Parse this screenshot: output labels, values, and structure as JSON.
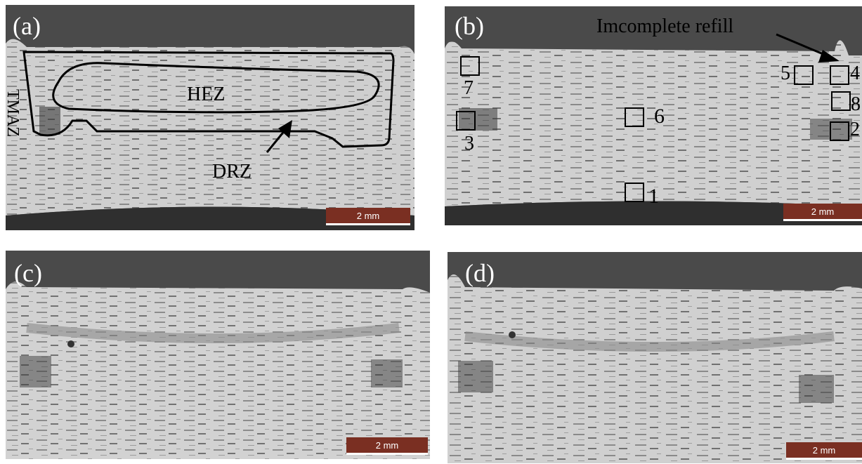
{
  "panels": {
    "a": {
      "label": "(a)",
      "scale": "2 mm"
    },
    "b": {
      "label": "(b)",
      "scale": "2 mm"
    },
    "c": {
      "label": "(c)",
      "scale": "2 mm"
    },
    "d": {
      "label": "(d)",
      "scale": "2 mm"
    }
  },
  "annotations": {
    "a": {
      "tmaz": "TMAZ",
      "hez": "HEZ",
      "drz": "DRZ"
    },
    "b": {
      "incomplete_refill": "Imcomplete refill",
      "markers": [
        "1",
        "2",
        "3",
        "4",
        "5",
        "6",
        "7",
        "8"
      ]
    }
  },
  "colors": {
    "background": "#4a4a4a",
    "sample": "#cfcfcf",
    "scale_bar": "#7a2f22"
  }
}
